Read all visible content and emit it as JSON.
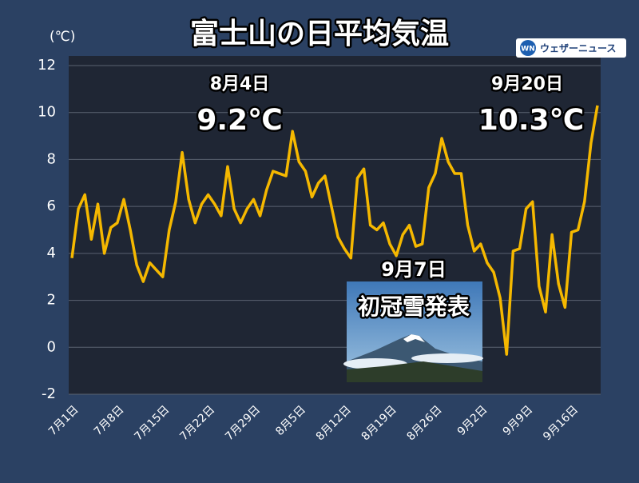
{
  "chart_data": {
    "type": "line",
    "title": "富士山の日平均気温",
    "y_label": "(℃)",
    "logo_mark": "WN",
    "logo": "ウェザーニュース",
    "categories": [
      "7月1日",
      null,
      null,
      null,
      null,
      null,
      null,
      "7月8日",
      null,
      null,
      null,
      null,
      null,
      null,
      "7月15日",
      null,
      null,
      null,
      null,
      null,
      null,
      "7月22日",
      null,
      null,
      null,
      null,
      null,
      null,
      "7月29日",
      null,
      null,
      null,
      null,
      null,
      null,
      "8月5日",
      null,
      null,
      null,
      null,
      null,
      null,
      "8月12日",
      null,
      null,
      null,
      null,
      null,
      null,
      "8月19日",
      null,
      null,
      null,
      null,
      null,
      null,
      "8月26日",
      null,
      null,
      null,
      null,
      null,
      null,
      "9月2日",
      null,
      null,
      null,
      null,
      null,
      null,
      "9月9日",
      null,
      null,
      null,
      null,
      null,
      null,
      "9月16日",
      null,
      null,
      null,
      null
    ],
    "series": [
      {
        "name": "日平均気温",
        "color": "#f5b800",
        "values": [
          3.8,
          5.9,
          6.5,
          4.6,
          6.1,
          4.0,
          5.1,
          5.3,
          6.3,
          5.0,
          3.5,
          2.8,
          3.6,
          3.3,
          3.0,
          5.0,
          6.2,
          8.3,
          6.3,
          5.3,
          6.1,
          6.5,
          6.1,
          5.6,
          7.7,
          5.9,
          5.3,
          5.9,
          6.3,
          5.6,
          6.7,
          7.5,
          7.4,
          7.3,
          9.2,
          7.9,
          7.5,
          6.4,
          7.0,
          7.3,
          6.0,
          4.7,
          4.2,
          3.8,
          7.2,
          7.6,
          5.2,
          5.0,
          5.3,
          4.4,
          3.9,
          4.8,
          5.2,
          4.3,
          4.4,
          6.8,
          7.4,
          8.9,
          7.9,
          7.4,
          7.4,
          5.2,
          4.1,
          4.4,
          3.6,
          3.2,
          2.1,
          -0.3,
          4.1,
          4.2,
          5.9,
          6.2,
          2.6,
          1.5,
          4.8,
          2.7,
          1.7,
          4.9,
          5.0,
          6.2,
          8.7,
          10.3
        ]
      }
    ],
    "ylim": [
      -2,
      12
    ],
    "yticks": [
      -2,
      0,
      2,
      4,
      6,
      8,
      10,
      12
    ],
    "grid": true,
    "annotations": [
      "8月4日",
      "9.2℃",
      "9月20日",
      "10.3℃",
      "9月7日",
      "初冠雪発表"
    ]
  }
}
